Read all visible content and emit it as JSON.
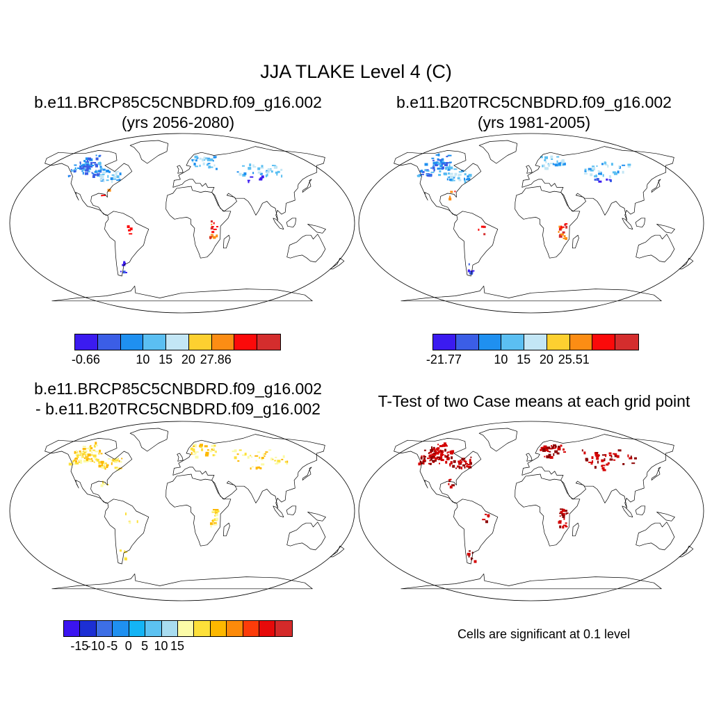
{
  "title": "JJA TLAKE Level 4 (C)",
  "panels": [
    {
      "id": "case1",
      "title_line1": "b.e11.BRCP85C5CNBDRD.f09_g16.002",
      "title_line2": "(yrs 2056-2080)"
    },
    {
      "id": "case2",
      "title_line1": "b.e11.B20TRC5CNBDRD.f09_g16.002",
      "title_line2": "(yrs 1981-2005)"
    },
    {
      "id": "diff",
      "title_line1": "b.e11.BRCP85C5CNBDRD.f09_g16.002",
      "title_line2": "- b.e11.B20TRC5CNBDRD.f09_g16.002"
    },
    {
      "id": "ttest",
      "title_line1": "T-Test of two Case means at each grid point"
    }
  ],
  "colorbars": [
    {
      "colors": [
        "#3b1bf0",
        "#3b5ee6",
        "#1f90f0",
        "#5bbff2",
        "#c3e6f5",
        "#fdd030",
        "#fc8d14",
        "#fb0a0a",
        "#d42d2d"
      ],
      "labels": [
        {
          "text": "-0.66",
          "boundary": 0.5
        },
        {
          "text": "10",
          "boundary": 3
        },
        {
          "text": "15",
          "boundary": 4
        },
        {
          "text": "20",
          "boundary": 5
        },
        {
          "text": "27.86",
          "boundary": 6.2
        }
      ]
    },
    {
      "colors": [
        "#3b1bf0",
        "#3b5ee6",
        "#1f90f0",
        "#5bbff2",
        "#c3e6f5",
        "#fdd030",
        "#fc8d14",
        "#fb0a0a",
        "#d42d2d"
      ],
      "labels": [
        {
          "text": "-21.77",
          "boundary": 0.5
        },
        {
          "text": "10",
          "boundary": 3
        },
        {
          "text": "15",
          "boundary": 4
        },
        {
          "text": "20",
          "boundary": 5
        },
        {
          "text": "25.51",
          "boundary": 6.2
        }
      ]
    },
    {
      "colors": [
        "#3b14f0",
        "#1c2fd4",
        "#3d6fe6",
        "#1f90f0",
        "#14b4f5",
        "#5cc2f2",
        "#a8dcf0",
        "#fbfba8",
        "#fde03a",
        "#fdb800",
        "#fc8a0a",
        "#fc3c0a",
        "#e60a0a",
        "#d42a2a"
      ],
      "labels": [
        {
          "text": "-15",
          "boundary": 1
        },
        {
          "text": "-10",
          "boundary": 2
        },
        {
          "text": "-5",
          "boundary": 3
        },
        {
          "text": "0",
          "boundary": 4
        },
        {
          "text": "5",
          "boundary": 5
        },
        {
          "text": "10",
          "boundary": 6
        },
        {
          "text": "15",
          "boundary": 7
        }
      ]
    }
  ],
  "significance_note": "Cells are significant at 0.1 level",
  "significance_color": "#d40000"
}
